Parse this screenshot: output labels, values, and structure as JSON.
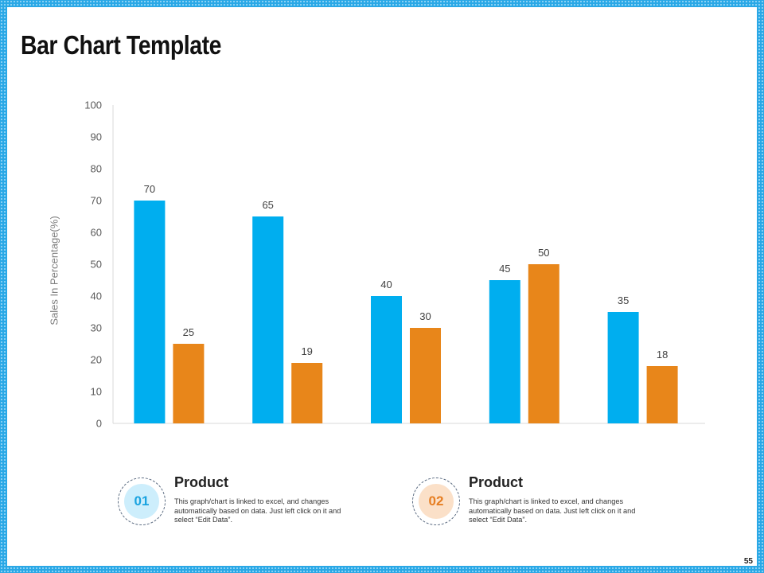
{
  "slide": {
    "title": "Bar Chart Template",
    "page_number": "55"
  },
  "chart_data": {
    "type": "bar",
    "categories": [
      "",
      "",
      "",
      "",
      ""
    ],
    "series": [
      {
        "values": [
          70,
          65,
          40,
          45,
          35
        ],
        "color": "#00AEEF"
      },
      {
        "values": [
          25,
          19,
          30,
          50,
          18
        ],
        "color": "#E8861A"
      }
    ],
    "ylabel": "Sales In Percentage(%)",
    "xlabel": "",
    "ylim": [
      0,
      100
    ],
    "yticks": [
      0,
      10,
      20,
      30,
      40,
      50,
      60,
      70,
      80,
      90,
      100
    ],
    "data_labels": true,
    "grid": false
  },
  "cards": [
    {
      "number": "01",
      "title": "Product",
      "text": "This graph/chart is linked to excel, and changes automatically based on data. Just left click on it and select “Edit Data”."
    },
    {
      "number": "02",
      "title": "Product",
      "text": "This graph/chart is linked to excel, and changes automatically based on data. Just left click on it and select “Edit Data”."
    }
  ]
}
